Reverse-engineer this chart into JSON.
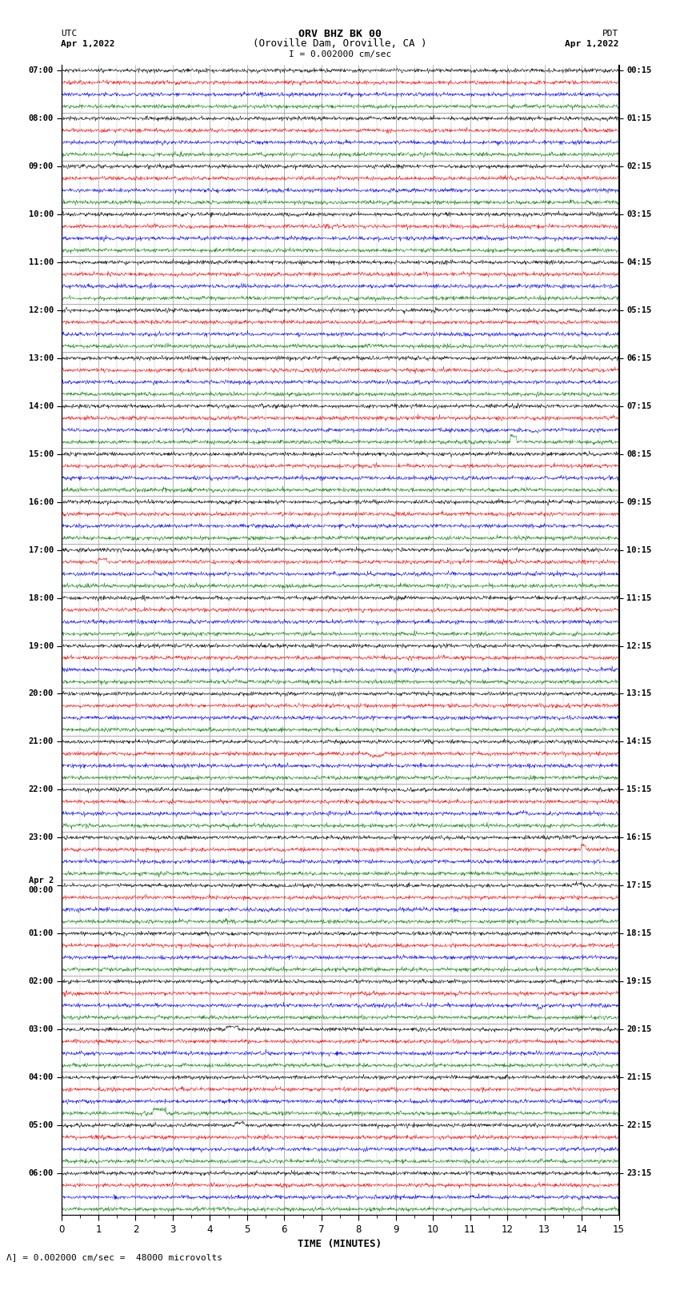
{
  "title_line1": "ORV BHZ BK 00",
  "title_line2": "(Oroville Dam, Oroville, CA )",
  "scale_text": "I = 0.002000 cm/sec",
  "bottom_scale_text": "Λ] = 0.002000 cm/sec =  48000 microvolts",
  "left_label": "UTC",
  "left_date": "Apr 1,2022",
  "right_label": "PDT",
  "right_date": "Apr 1,2022",
  "xlabel": "TIME (MINUTES)",
  "time_min": 0,
  "time_max": 15,
  "trace_colors": [
    "black",
    "red",
    "blue",
    "green"
  ],
  "bg_color": "white",
  "noise_amplitude": 0.08,
  "fig_width": 8.5,
  "fig_height": 16.13,
  "dpi": 100,
  "num_hours": 24,
  "traces_per_hour": 4,
  "left_hour_labels": [
    [
      0,
      "07:00"
    ],
    [
      4,
      "08:00"
    ],
    [
      8,
      "09:00"
    ],
    [
      12,
      "10:00"
    ],
    [
      16,
      "11:00"
    ],
    [
      20,
      "12:00"
    ],
    [
      24,
      "13:00"
    ],
    [
      28,
      "14:00"
    ],
    [
      32,
      "15:00"
    ],
    [
      36,
      "16:00"
    ],
    [
      40,
      "17:00"
    ],
    [
      44,
      "18:00"
    ],
    [
      48,
      "19:00"
    ],
    [
      52,
      "20:00"
    ],
    [
      56,
      "21:00"
    ],
    [
      60,
      "22:00"
    ],
    [
      64,
      "23:00"
    ],
    [
      68,
      "Apr 2\n00:00"
    ],
    [
      72,
      "01:00"
    ],
    [
      76,
      "02:00"
    ],
    [
      80,
      "03:00"
    ],
    [
      84,
      "04:00"
    ],
    [
      88,
      "05:00"
    ],
    [
      92,
      "06:00"
    ]
  ],
  "right_hour_labels": [
    [
      0,
      "00:15"
    ],
    [
      4,
      "01:15"
    ],
    [
      8,
      "02:15"
    ],
    [
      12,
      "03:15"
    ],
    [
      16,
      "04:15"
    ],
    [
      20,
      "05:15"
    ],
    [
      24,
      "06:15"
    ],
    [
      28,
      "07:15"
    ],
    [
      32,
      "08:15"
    ],
    [
      36,
      "09:15"
    ],
    [
      40,
      "10:15"
    ],
    [
      44,
      "11:15"
    ],
    [
      48,
      "12:15"
    ],
    [
      52,
      "13:15"
    ],
    [
      56,
      "14:15"
    ],
    [
      60,
      "15:15"
    ],
    [
      64,
      "16:15"
    ],
    [
      68,
      "17:15"
    ],
    [
      72,
      "18:15"
    ],
    [
      76,
      "19:15"
    ],
    [
      80,
      "20:15"
    ],
    [
      84,
      "21:15"
    ],
    [
      88,
      "22:15"
    ],
    [
      92,
      "23:15"
    ]
  ]
}
